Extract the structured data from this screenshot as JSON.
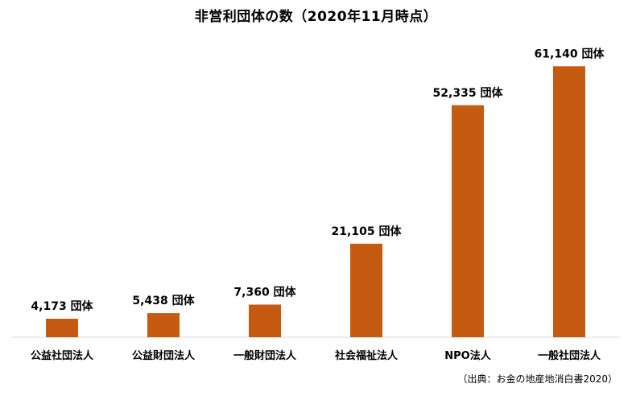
{
  "title": "非営利団体の数（2020年11月時点）",
  "source": "（出典：お金の地産地消白書2020）",
  "colors": {
    "bar": "#C55A11",
    "axis": "#D9D9D9"
  },
  "chart_data": {
    "type": "bar",
    "title": "非営利団体の数（2020年11月時点）",
    "categories": [
      "公益社団法人",
      "公益財団法人",
      "一般財団法人",
      "社会福祉法人",
      "NPO法人",
      "一般社団法人"
    ],
    "values": [
      4173,
      5438,
      7360,
      21105,
      52335,
      61140
    ],
    "data_labels": [
      "4,173 団体",
      "5,438 団体",
      "7,360 団体",
      "21,105 団体",
      "52,335 団体",
      "61,140 団体"
    ],
    "unit": "団体",
    "xlabel": "",
    "ylabel": "",
    "ylim": [
      0,
      67000
    ],
    "grid": false,
    "legend": "none"
  }
}
